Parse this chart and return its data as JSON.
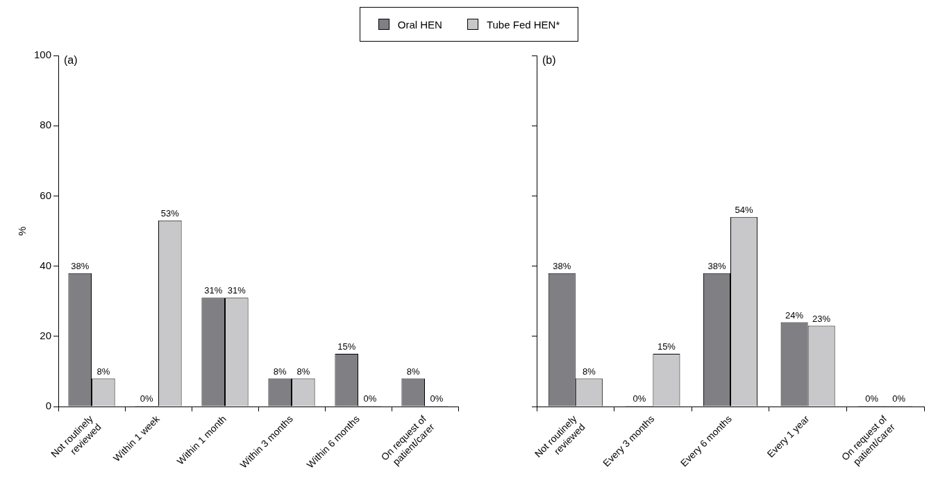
{
  "chart_data": [
    {
      "type": "bar",
      "annotations": [
        "(a)"
      ],
      "ylabel": "%",
      "categories": [
        "Not routinely reviewed",
        "Within 1 week",
        "Within 1 month",
        "Within 3 months",
        "Within 6 months",
        "On request of patient/carer"
      ],
      "ylim": [
        0,
        100
      ],
      "yticks": [
        0,
        20,
        40,
        60,
        80,
        100
      ],
      "legend": "top",
      "series": [
        {
          "name": "Oral HEN",
          "color": "#7f7f84",
          "values": [
            38,
            0,
            31,
            8,
            15,
            8
          ],
          "value_labels": [
            "38%",
            "0%",
            "31%",
            "8%",
            "15%",
            "8%"
          ]
        },
        {
          "name": "Tube Fed HEN*",
          "color": "#c8c8ca",
          "values": [
            8,
            53,
            31,
            8,
            0,
            0
          ],
          "value_labels": [
            "8%",
            "53%",
            "31%",
            "8%",
            "0%",
            "0%"
          ]
        }
      ]
    },
    {
      "type": "bar",
      "annotations": [
        "(b)"
      ],
      "categories": [
        "Not routinely reviewed",
        "Every 3 months",
        "Every 6 months",
        "Every 1 year",
        "On request of patient/carer"
      ],
      "ylim": [
        0,
        100
      ],
      "yticks": [
        0,
        20,
        40,
        60,
        80,
        100
      ],
      "tick_labels": "x",
      "series": [
        {
          "color": "#7f7f84",
          "values": [
            38,
            0,
            38,
            24,
            0
          ],
          "value_labels": [
            "38%",
            "0%",
            "38%",
            "24%",
            "0%"
          ]
        },
        {
          "color": "#c8c8ca",
          "values": [
            8,
            15,
            54,
            23,
            0
          ],
          "value_labels": [
            "8%",
            "15%",
            "54%",
            "23%",
            "0%"
          ]
        }
      ]
    }
  ]
}
